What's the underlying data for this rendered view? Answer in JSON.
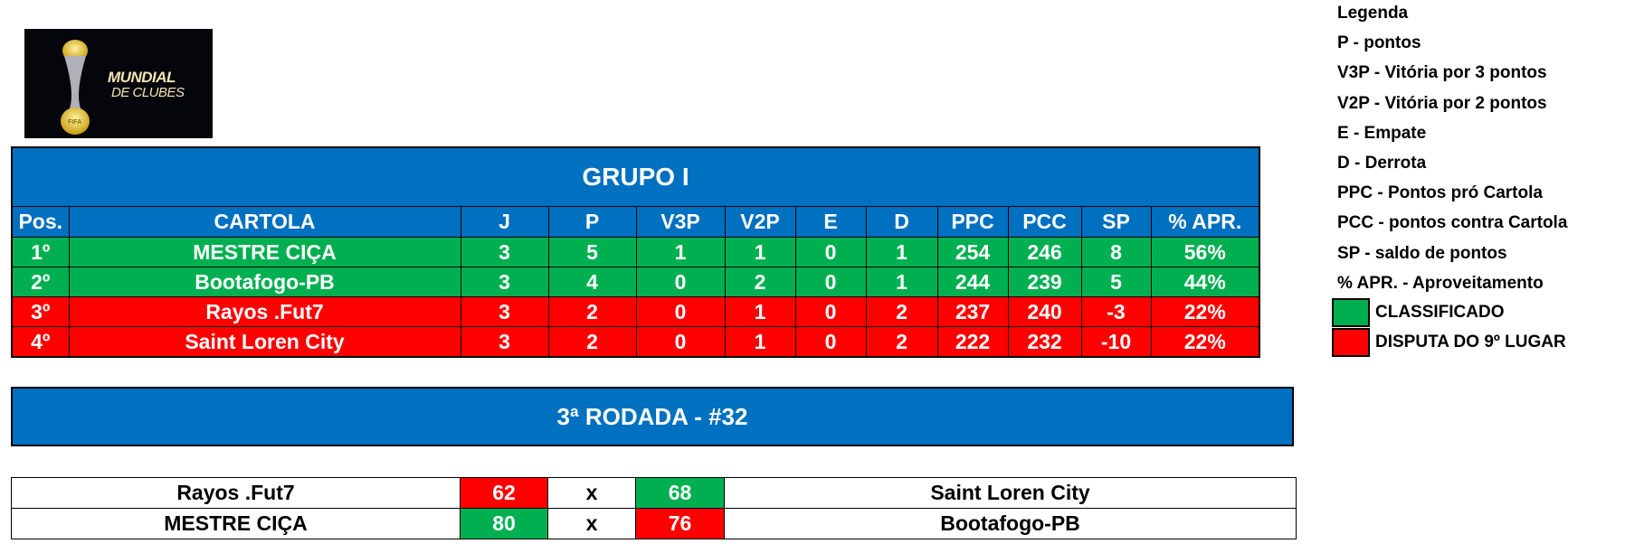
{
  "logo": {
    "line1": "MUNDIAL",
    "line2": "DE CLUBES",
    "badge": "FIFA"
  },
  "colors": {
    "header_blue": "#0070C0",
    "classified_green": "#00B050",
    "dispute_red": "#FF0000"
  },
  "standings": {
    "title": "GRUPO I",
    "columns": [
      "Pos.",
      "CARTOLA",
      "J",
      "P",
      "V3P",
      "V2P",
      "E",
      "D",
      "PPC",
      "PCC",
      "SP",
      "% APR."
    ],
    "rows": [
      {
        "status": "green",
        "cells": [
          "1º",
          "MESTRE CIÇA",
          "3",
          "5",
          "1",
          "1",
          "0",
          "1",
          "254",
          "246",
          "8",
          "56%"
        ]
      },
      {
        "status": "green",
        "cells": [
          "2º",
          "Bootafogo-PB",
          "3",
          "4",
          "0",
          "2",
          "0",
          "1",
          "244",
          "239",
          "5",
          "44%"
        ]
      },
      {
        "status": "red",
        "cells": [
          "3º",
          "Rayos .Fut7",
          "3",
          "2",
          "0",
          "1",
          "0",
          "2",
          "237",
          "240",
          "-3",
          "22%"
        ]
      },
      {
        "status": "red",
        "cells": [
          "4º",
          "Saint Loren City",
          "3",
          "2",
          "0",
          "1",
          "0",
          "2",
          "222",
          "232",
          "-10",
          "22%"
        ]
      }
    ]
  },
  "round": {
    "title": "3ª RODADA - #32"
  },
  "matches": [
    {
      "home": "Rayos .Fut7",
      "home_score": "62",
      "home_status": "red",
      "sep": "x",
      "away_score": "68",
      "away_status": "green",
      "away": "Saint Loren City"
    },
    {
      "home": "MESTRE CIÇA",
      "home_score": "80",
      "home_status": "green",
      "sep": "x",
      "away_score": "76",
      "away_status": "red",
      "away": "Bootafogo-PB"
    }
  ],
  "legend": {
    "lines": [
      "Legenda",
      "P - pontos",
      "V3P - Vitória por 3 pontos",
      "V2P - Vitória por 2 pontos",
      "E - Empate",
      "D - Derrota",
      "PPC - Pontos pró Cartola",
      "PCC - pontos contra Cartola",
      "SP - saldo de pontos",
      "% APR. - Aproveitamento"
    ],
    "swatches": [
      {
        "color": "#00B050",
        "label": "CLASSIFICADO"
      },
      {
        "color": "#FF0000",
        "label": "DISPUTA DO 9º LUGAR"
      }
    ]
  }
}
